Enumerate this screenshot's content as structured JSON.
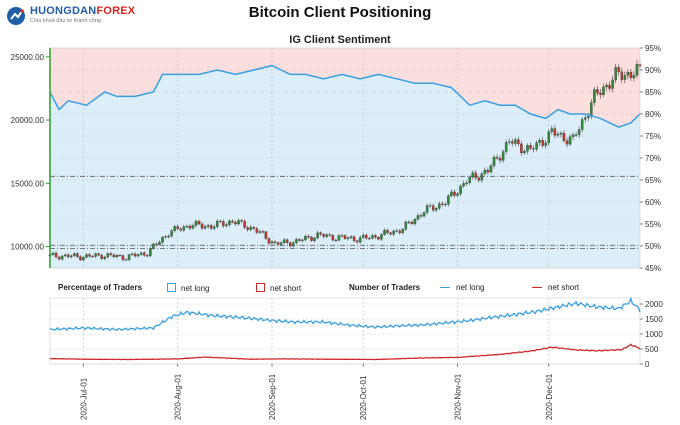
{
  "header": {
    "logo_brand": "HUONGDAN",
    "logo_accent": "FOREX",
    "logo_tagline": "Chia khoá đầu tư thành công",
    "title": "Bitcoin Client Positioning",
    "subtitle": "IG Client Sentiment"
  },
  "legend": {
    "pct_title": "Percentage of Traders",
    "pct_long": "net long",
    "pct_short": "net short",
    "num_title": "Number of Traders",
    "num_long": "net long",
    "num_short": "net short"
  },
  "colors": {
    "long": "#3a9fe0",
    "short": "#d02828",
    "long_fill": "#dceefa",
    "short_fill": "#fbdede",
    "axis_green": "#2e9a2e",
    "candle_up": "#2f8a3c",
    "candle_down": "#c0392b"
  },
  "chart_data": [
    {
      "type": "candlestick+area",
      "title": "IG Client Sentiment",
      "price_axis": {
        "side": "left",
        "ticks": [
          10000,
          15000,
          20000,
          25000
        ],
        "tick_labels": [
          "10000.00",
          "15000.00",
          "20000.00",
          "25000.00"
        ],
        "range": [
          8300,
          25700
        ]
      },
      "percent_axis": {
        "side": "right",
        "ticks": [
          45,
          50,
          55,
          60,
          65,
          70,
          75,
          80,
          85,
          90,
          95
        ],
        "tick_labels": [
          "45%",
          "50%",
          "55%",
          "60%",
          "65%",
          "70%",
          "75%",
          "80%",
          "85%",
          "90%",
          "95%"
        ],
        "range": [
          45,
          95
        ]
      },
      "reference_lines_price": [
        15550,
        10100,
        9850
      ],
      "x_range_days": [
        "2020-06-20",
        "2020-12-31"
      ],
      "x_ticks": [
        "2020-Jul-01",
        "2020-Aug-01",
        "2020-Sep-01",
        "2020-Oct-01",
        "2020-Nov-01",
        "2020-Dec-01"
      ],
      "net_long_pct": {
        "x": [
          "2020-06-20",
          "2020-06-23",
          "2020-06-26",
          "2020-07-02",
          "2020-07-08",
          "2020-07-12",
          "2020-07-18",
          "2020-07-24",
          "2020-07-27",
          "2020-08-03",
          "2020-08-08",
          "2020-08-14",
          "2020-08-20",
          "2020-08-26",
          "2020-09-01",
          "2020-09-04",
          "2020-09-07",
          "2020-09-12",
          "2020-09-18",
          "2020-09-24",
          "2020-09-30",
          "2020-10-06",
          "2020-10-12",
          "2020-10-18",
          "2020-10-24",
          "2020-10-30",
          "2020-11-05",
          "2020-11-10",
          "2020-11-15",
          "2020-11-20",
          "2020-11-25",
          "2020-11-30",
          "2020-12-04",
          "2020-12-08",
          "2020-12-13",
          "2020-12-18",
          "2020-12-21",
          "2020-12-24",
          "2020-12-28",
          "2020-12-31"
        ],
        "values": [
          85,
          81,
          83,
          82,
          85,
          84,
          84,
          85,
          89,
          89,
          89,
          90,
          89,
          90,
          91,
          90,
          89,
          89,
          88,
          89,
          88,
          89,
          88,
          87,
          87,
          86,
          82,
          83,
          82,
          82,
          80,
          79,
          81,
          80,
          80,
          79,
          78,
          77,
          78,
          80
        ]
      },
      "price_ohlc_weekly": {
        "x": [
          "2020-06-24",
          "2020-07-01",
          "2020-07-08",
          "2020-07-15",
          "2020-07-22",
          "2020-07-29",
          "2020-08-05",
          "2020-08-12",
          "2020-08-19",
          "2020-08-26",
          "2020-09-02",
          "2020-09-09",
          "2020-09-16",
          "2020-09-23",
          "2020-09-30",
          "2020-10-07",
          "2020-10-14",
          "2020-10-21",
          "2020-10-28",
          "2020-11-04",
          "2020-11-11",
          "2020-11-18",
          "2020-11-25",
          "2020-12-02",
          "2020-12-09",
          "2020-12-16",
          "2020-12-23",
          "2020-12-30"
        ],
        "close": [
          9250,
          9200,
          9300,
          9150,
          9500,
          11100,
          11700,
          11600,
          12000,
          11400,
          10200,
          10400,
          10900,
          10700,
          10600,
          10900,
          11400,
          12800,
          13500,
          15200,
          16000,
          18300,
          17600,
          19000,
          18400,
          21800,
          23500,
          23800
        ]
      }
    },
    {
      "type": "line",
      "title": "Number of Traders",
      "y_axis": {
        "side": "right",
        "ticks": [
          0,
          500,
          1000,
          1500,
          2000
        ],
        "range": [
          0,
          2200
        ]
      },
      "x_range_days": [
        "2020-06-20",
        "2020-12-31"
      ],
      "series": [
        {
          "name": "net long",
          "x": [
            "2020-06-20",
            "2020-07-01",
            "2020-07-12",
            "2020-07-24",
            "2020-07-30",
            "2020-08-04",
            "2020-08-14",
            "2020-08-22",
            "2020-09-01",
            "2020-09-08",
            "2020-09-18",
            "2020-09-26",
            "2020-10-05",
            "2020-10-12",
            "2020-10-20",
            "2020-10-28",
            "2020-11-05",
            "2020-11-12",
            "2020-11-20",
            "2020-11-27",
            "2020-12-03",
            "2020-12-10",
            "2020-12-17",
            "2020-12-24",
            "2020-12-28",
            "2020-12-31"
          ],
          "values": [
            1150,
            1200,
            1150,
            1200,
            1580,
            1720,
            1600,
            1550,
            1450,
            1400,
            1400,
            1300,
            1230,
            1270,
            1300,
            1370,
            1450,
            1550,
            1650,
            1750,
            1880,
            2020,
            1900,
            1850,
            2100,
            1800
          ]
        },
        {
          "name": "net short",
          "x": [
            "2020-06-20",
            "2020-07-01",
            "2020-07-15",
            "2020-08-01",
            "2020-08-10",
            "2020-08-25",
            "2020-09-05",
            "2020-09-20",
            "2020-10-05",
            "2020-10-20",
            "2020-11-01",
            "2020-11-15",
            "2020-11-25",
            "2020-12-02",
            "2020-12-10",
            "2020-12-17",
            "2020-12-25",
            "2020-12-28",
            "2020-12-31"
          ],
          "values": [
            180,
            160,
            150,
            170,
            230,
            160,
            170,
            160,
            150,
            200,
            220,
            320,
            430,
            560,
            470,
            440,
            480,
            640,
            520
          ]
        }
      ]
    }
  ]
}
